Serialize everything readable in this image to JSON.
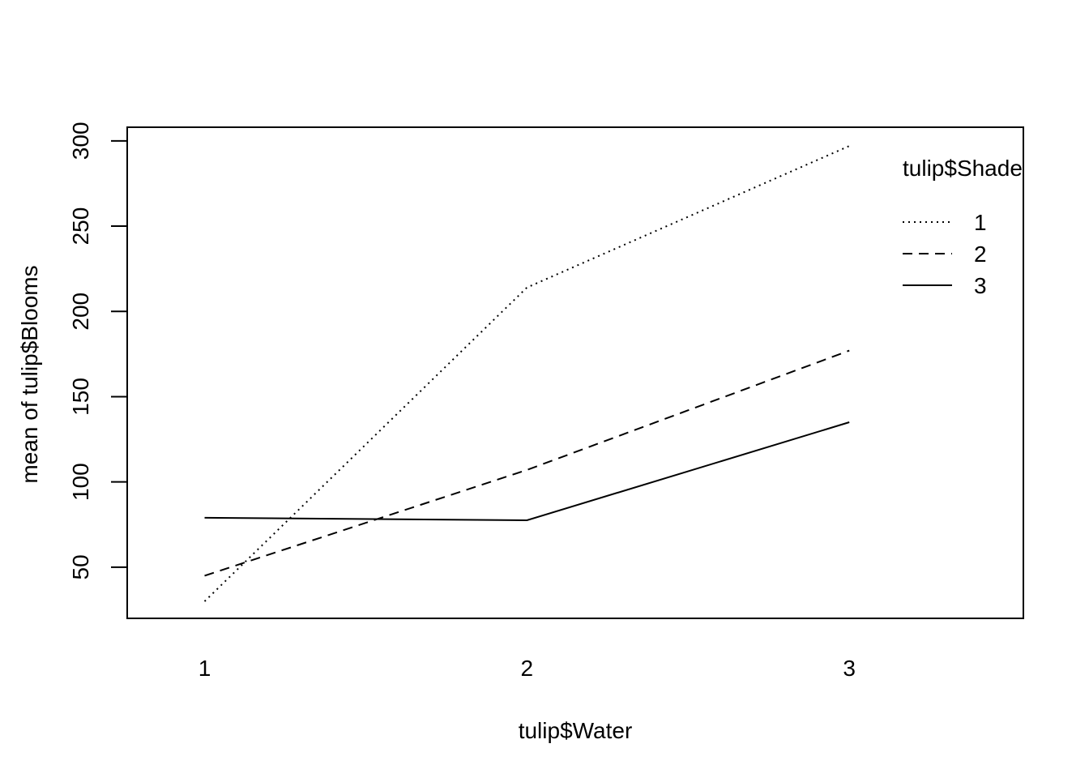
{
  "chart_data": {
    "type": "line",
    "title": "",
    "xlabel": "tulip$Water",
    "ylabel": "mean of  tulip$Blooms",
    "categories": [
      "1",
      "2",
      "3"
    ],
    "x": [
      1,
      2,
      3
    ],
    "xlim": [
      0.76,
      3.54
    ],
    "ylim": [
      20,
      308
    ],
    "yticks": [
      50,
      100,
      150,
      200,
      250,
      300
    ],
    "grid": false,
    "legend": {
      "title": "tulip$Shade",
      "position": "top-right"
    },
    "series": [
      {
        "name": "1",
        "values": [
          30,
          214,
          297
        ],
        "line_style": "dotted",
        "color": "#000000"
      },
      {
        "name": "2",
        "values": [
          45,
          107,
          177
        ],
        "line_style": "dashed",
        "color": "#000000"
      },
      {
        "name": "3",
        "values": [
          79,
          77.5,
          135
        ],
        "line_style": "solid",
        "color": "#000000"
      }
    ]
  }
}
